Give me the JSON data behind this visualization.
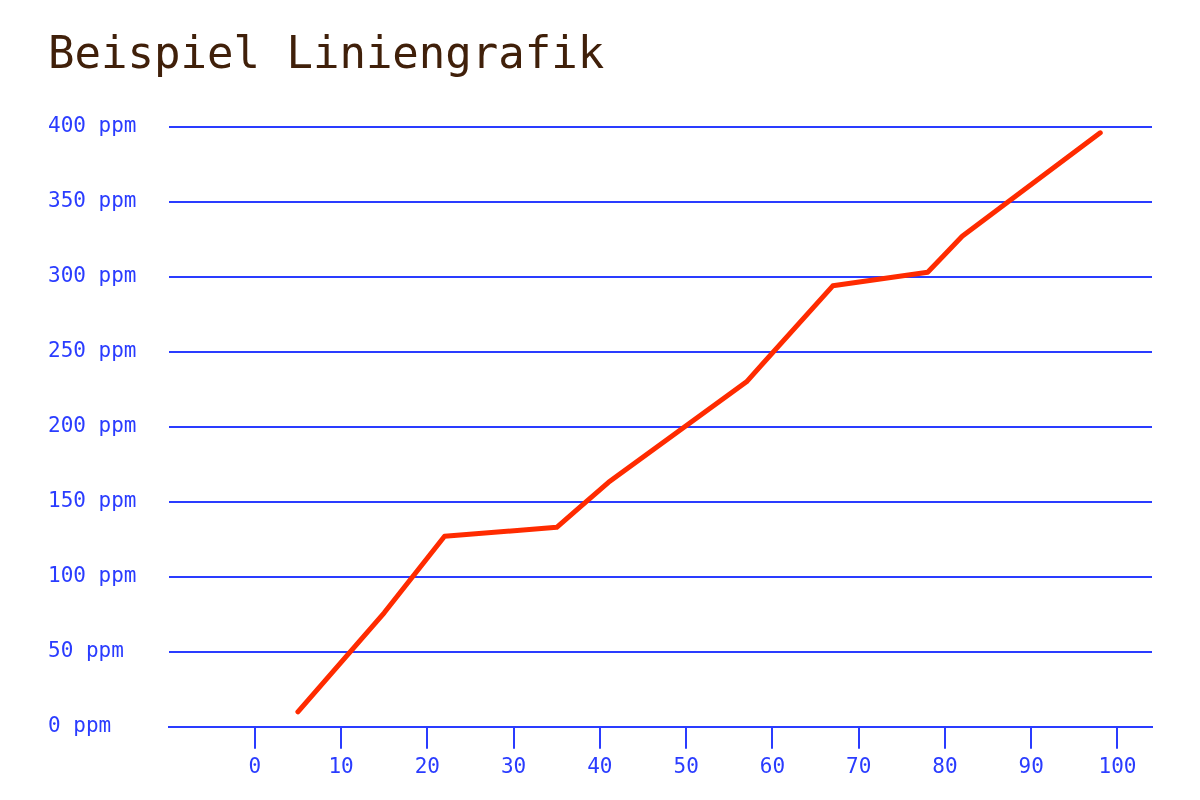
{
  "chart_data": {
    "type": "line",
    "title": "Beispiel Liniengrafik",
    "x": [
      5,
      15,
      22,
      35,
      41,
      57,
      67,
      78,
      82,
      98
    ],
    "series": [
      {
        "color": "#ff2b00",
        "values": [
          10,
          76,
          127,
          133,
          163,
          230,
          294,
          303,
          327,
          396
        ]
      }
    ],
    "xlim": [
      -10,
      104
    ],
    "xticks": [
      0,
      10,
      20,
      30,
      40,
      50,
      60,
      70,
      80,
      90,
      100
    ],
    "ylim": [
      0,
      400
    ],
    "yticks": [
      {
        "value": 0,
        "label": "0 ppm"
      },
      {
        "value": 50,
        "label": "50 ppm"
      },
      {
        "value": 100,
        "label": "100 ppm"
      },
      {
        "value": 150,
        "label": "150 ppm"
      },
      {
        "value": 200,
        "label": "200 ppm"
      },
      {
        "value": 250,
        "label": "250 ppm"
      },
      {
        "value": 300,
        "label": "300 ppm"
      },
      {
        "value": 350,
        "label": "350 ppm"
      },
      {
        "value": 400,
        "label": "400 ppm"
      }
    ],
    "grid": "y",
    "line_style": "solid"
  }
}
